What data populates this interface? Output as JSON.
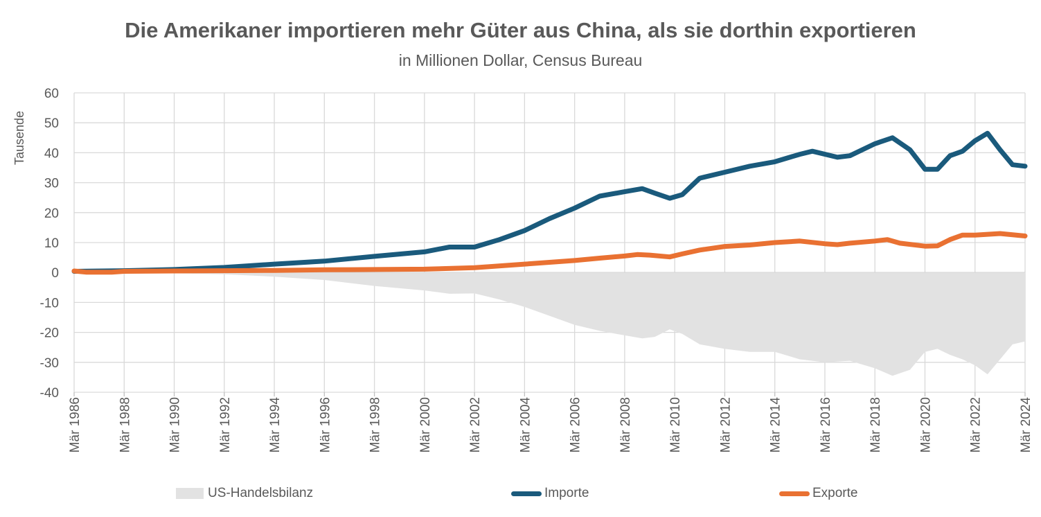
{
  "chart_data": {
    "type": "line",
    "title": "Die Amerikaner importieren mehr Güter aus China, als sie dorthin exportieren",
    "subtitle": "in Millionen Dollar, Census Bureau",
    "ylabel": "Tausende",
    "ylim": [
      -40,
      60
    ],
    "yticks": [
      60,
      50,
      40,
      30,
      20,
      10,
      0,
      -10,
      -20,
      -30,
      -40
    ],
    "xlim": [
      1986,
      2024
    ],
    "xticks": [
      "Mär 1986",
      "Mär 1988",
      "Mär 1990",
      "Mär 1992",
      "Mär 1994",
      "Mär 1996",
      "Mär 1998",
      "Mär 2000",
      "Mär 2002",
      "Mär 2004",
      "Mär 2006",
      "Mär 2008",
      "Mär 2010",
      "Mär 2012",
      "Mär 2014",
      "Mär 2016",
      "Mär 2018",
      "Mär 2020",
      "Mär 2022",
      "Mär 2024"
    ],
    "grid": true,
    "legend_position": "bottom",
    "series": [
      {
        "name": "US-Handelsbilanz",
        "kind": "area",
        "color": "#e2e2e2",
        "x": [
          1986,
          1988,
          1990,
          1992,
          1994,
          1996,
          1998,
          2000,
          2001,
          2002,
          2003,
          2004,
          2005,
          2006,
          2007,
          2008,
          2008.7,
          2009.2,
          2009.8,
          2010.3,
          2011,
          2012,
          2013,
          2014,
          2015,
          2016,
          2017,
          2018,
          2018.7,
          2019.4,
          2020,
          2020.5,
          2021,
          2021.5,
          2022,
          2022.5,
          2023,
          2023.5,
          2024
        ],
        "values": [
          0.0,
          -0.1,
          -0.3,
          -0.6,
          -1.4,
          -2.5,
          -4.5,
          -6.0,
          -7.1,
          -7.0,
          -9.0,
          -11.5,
          -14.5,
          -17.5,
          -19.5,
          -21.0,
          -22.0,
          -21.5,
          -19.0,
          -20.5,
          -24.0,
          -25.5,
          -26.5,
          -26.5,
          -29.0,
          -30.0,
          -29.5,
          -32.0,
          -34.5,
          -32.5,
          -26.5,
          -25.5,
          -27.5,
          -29.0,
          -31.0,
          -34.0,
          -29.0,
          -24.0,
          -23.0
        ]
      },
      {
        "name": "Importe",
        "kind": "line",
        "color": "#1a5a7c",
        "x": [
          1986,
          1988,
          1990,
          1992,
          1994,
          1996,
          1998,
          2000,
          2001,
          2002,
          2003,
          2004,
          2005,
          2006,
          2007,
          2008,
          2008.7,
          2009.2,
          2009.8,
          2010.3,
          2011,
          2012,
          2013,
          2014,
          2015,
          2015.5,
          2016.5,
          2017,
          2018,
          2018.7,
          2019.4,
          2020,
          2020.5,
          2021,
          2021.5,
          2022,
          2022.5,
          2023,
          2023.5,
          2024
        ],
        "values": [
          0.4,
          0.6,
          1.0,
          1.7,
          2.8,
          3.8,
          5.4,
          6.9,
          8.5,
          8.5,
          11.0,
          14.0,
          18.0,
          21.5,
          25.5,
          27.0,
          28.0,
          26.5,
          24.8,
          26.0,
          31.5,
          33.5,
          35.5,
          37.0,
          39.5,
          40.5,
          38.5,
          39.0,
          43.0,
          45.0,
          41.0,
          34.5,
          34.5,
          39.0,
          40.5,
          44.0,
          46.5,
          41.0,
          36.0,
          35.5
        ]
      },
      {
        "name": "Exporte",
        "kind": "line",
        "color": "#e97132",
        "x": [
          1986,
          1986.5,
          1987.5,
          1988,
          1990,
          1992,
          1994,
          1996,
          1998,
          2000,
          2002,
          2004,
          2006,
          2007,
          2008,
          2008.5,
          2009,
          2009.8,
          2010.3,
          2011,
          2012,
          2013,
          2014,
          2015,
          2016,
          2016.5,
          2017,
          2018,
          2018.5,
          2019,
          2020,
          2020.5,
          2021,
          2021.5,
          2022,
          2023,
          2024
        ],
        "values": [
          0.5,
          0.1,
          0.1,
          0.4,
          0.5,
          0.6,
          0.7,
          0.9,
          1.0,
          1.1,
          1.6,
          2.8,
          4.0,
          4.8,
          5.5,
          6.0,
          5.8,
          5.2,
          6.2,
          7.5,
          8.7,
          9.2,
          10.0,
          10.5,
          9.6,
          9.3,
          9.8,
          10.5,
          11.0,
          9.8,
          8.8,
          8.9,
          11.0,
          12.5,
          12.5,
          13.0,
          12.2
        ]
      }
    ]
  }
}
